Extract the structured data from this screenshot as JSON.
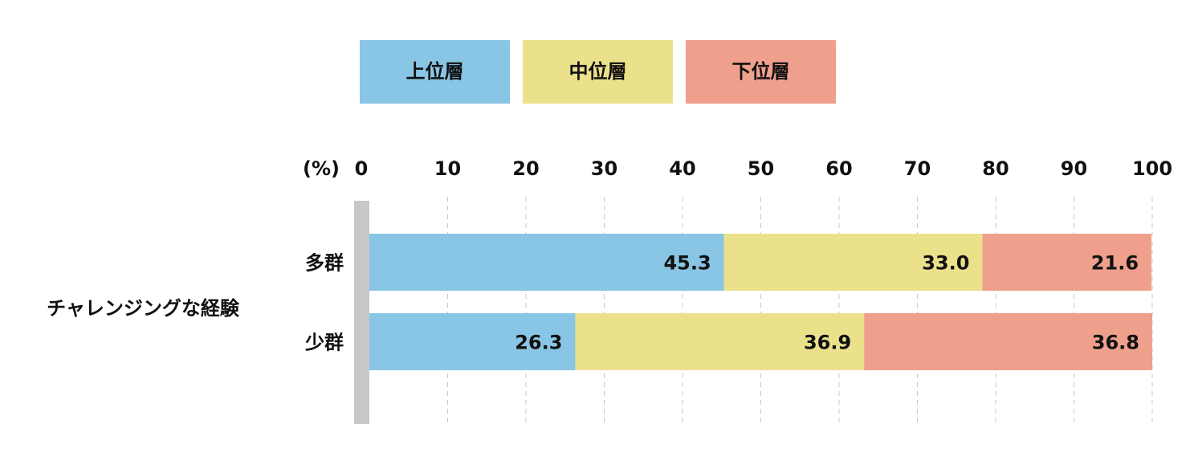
{
  "chart_data": {
    "type": "stacked_bar_horizontal",
    "group_label": "チャレンジングな経験",
    "x_unit_label": "(%)",
    "categories": [
      "多群",
      "少群"
    ],
    "series": [
      {
        "name": "上位層",
        "color": "#89c5e4",
        "values": [
          45.3,
          26.3
        ],
        "value_labels": [
          "45.3",
          "26.3"
        ]
      },
      {
        "name": "中位層",
        "color": "#ebe18b",
        "values": [
          33.0,
          36.9
        ],
        "value_labels": [
          "33.0",
          "36.9"
        ]
      },
      {
        "name": "下位層",
        "color": "#efa08c",
        "values": [
          21.6,
          36.8
        ],
        "value_labels": [
          "21.6",
          "36.8"
        ]
      }
    ],
    "xlim": [
      0,
      100
    ],
    "xticks": [
      0,
      10,
      20,
      30,
      40,
      50,
      60,
      70,
      80,
      90,
      100
    ],
    "grid": true
  }
}
